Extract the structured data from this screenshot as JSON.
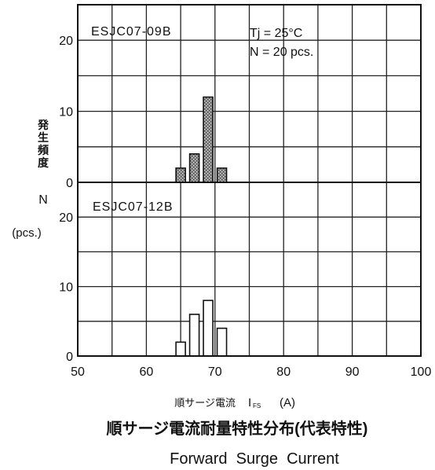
{
  "chart_data": [
    {
      "type": "bar",
      "panel_label": "ESJC07-09B",
      "conditions": [
        "Tj = 25°C",
        "N = 20 pcs."
      ],
      "x": [
        65,
        67,
        69,
        71
      ],
      "values": [
        2,
        4,
        12,
        2
      ],
      "bar_style": "stippled",
      "xlim": [
        50,
        100
      ],
      "ylim": [
        0,
        25
      ],
      "yticks": [
        "0",
        "10",
        "20"
      ],
      "grid": true
    },
    {
      "type": "bar",
      "panel_label": "ESJC07-12B",
      "x": [
        65,
        67,
        69,
        71
      ],
      "values": [
        2,
        6,
        8,
        4
      ],
      "bar_style": "outline",
      "xlim": [
        50,
        100
      ],
      "ylim": [
        0,
        25
      ],
      "yticks": [
        "0",
        "10",
        "20"
      ],
      "grid": true
    }
  ],
  "axes": {
    "xticks": [
      "50",
      "60",
      "70",
      "80",
      "90",
      "100"
    ],
    "xlabel": "順サージ電流",
    "xlabel_symbol": "I",
    "xlabel_subscript": "FS",
    "xlabel_unit": "(A)",
    "ylabel_jp": [
      "発",
      "生",
      "頻",
      "度"
    ],
    "ylabel_symbol": "N",
    "ylabel_unit": "(pcs.)"
  },
  "caption": {
    "japanese": "順サージ電流耐量特性分布(代表特性)",
    "english": "Forward  Surge  Current"
  }
}
